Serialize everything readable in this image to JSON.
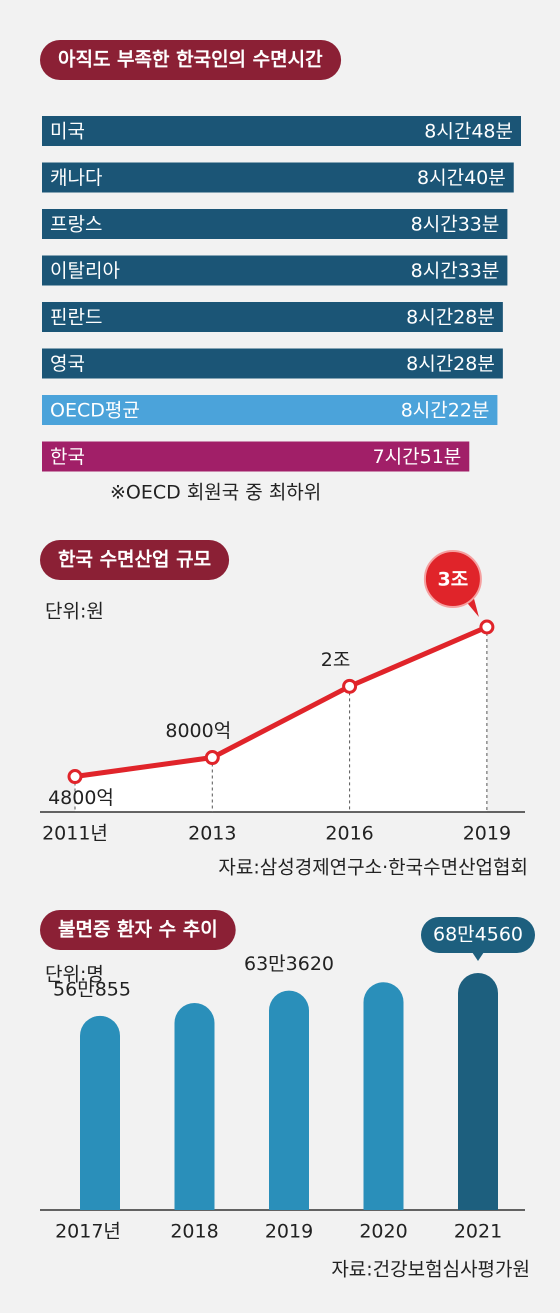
{
  "chart_data": [
    {
      "type": "hbar",
      "title": "아직도 부족한 한국인의 수면시간",
      "categories": [
        "미국",
        "캐나다",
        "프랑스",
        "이탈리아",
        "핀란드",
        "영국",
        "OECD평균",
        "한국"
      ],
      "values": [
        528,
        520,
        513,
        513,
        508,
        508,
        502,
        471
      ],
      "value_labels": [
        "8시간48분",
        "8시간40분",
        "8시간33분",
        "8시간33분",
        "8시간28분",
        "8시간28분",
        "8시간22분",
        "7시간51분"
      ],
      "colors": [
        "#1b5576",
        "#1b5576",
        "#1b5576",
        "#1b5576",
        "#1b5576",
        "#1b5576",
        "#4ba3da",
        "#a11f68"
      ],
      "annotation": "※OECD 회원국 중 최하위"
    },
    {
      "type": "line",
      "title": "한국 수면산업 규모",
      "unit_label": "단위:원",
      "categories": [
        "2011년",
        "2013",
        "2016",
        "2019"
      ],
      "values": [
        4800,
        8000,
        20000,
        30000
      ],
      "value_labels": [
        "4800억",
        "8000억",
        "2조",
        "3조"
      ],
      "color": "#e0242a",
      "source": "자료:삼성경제연구소·한국수면산업협회"
    },
    {
      "type": "bar",
      "title": "불면증 환자 수  추이",
      "unit_label": "단위:명",
      "categories": [
        "2017년",
        "2018",
        "2019",
        "2020",
        "2021"
      ],
      "values": [
        560855,
        598000,
        633620,
        658000,
        684560
      ],
      "value_labels": [
        "56만855",
        null,
        "63만3620",
        null,
        "68만4560"
      ],
      "colors": [
        "#2a8fba",
        "#2a8fba",
        "#2a8fba",
        "#2a8fba",
        "#1d5f7e"
      ],
      "source": "자료:건강보험심사평가원"
    }
  ]
}
